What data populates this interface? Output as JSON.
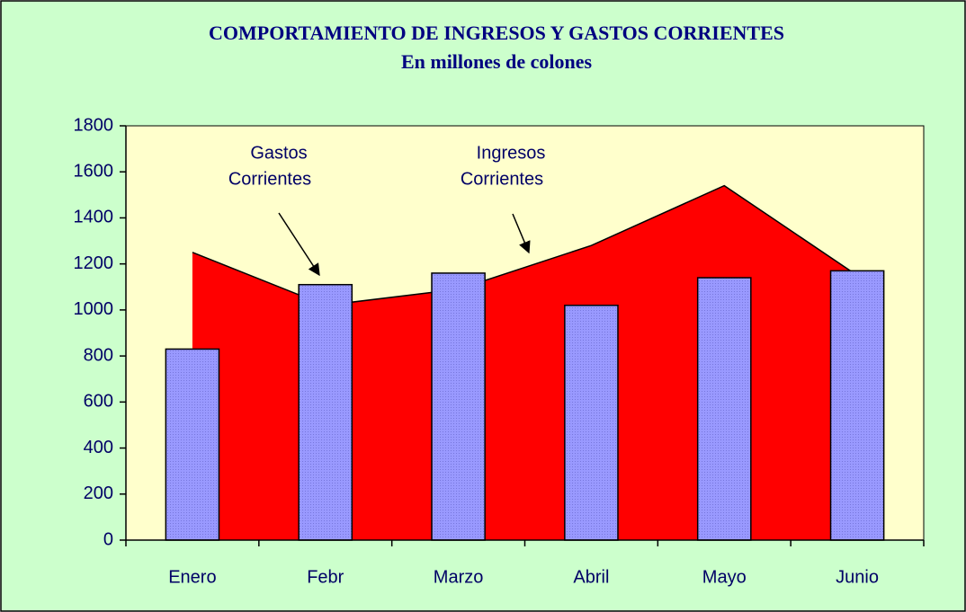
{
  "chart_data": {
    "type": "bar_area",
    "title": "COMPORTAMIENTO DE INGRESOS Y GASTOS CORRIENTES",
    "subtitle": "En millones de colones",
    "categories": [
      "Enero",
      "Febr",
      "Marzo",
      "Abril",
      "Mayo",
      "Junio"
    ],
    "series": [
      {
        "type": "area",
        "color": "#ff0000",
        "values": [
          1250,
          1020,
          1090,
          1280,
          1540,
          1150
        ]
      },
      {
        "type": "bar",
        "color": "#9999ff",
        "values": [
          830,
          1110,
          1160,
          1020,
          1140,
          1170
        ]
      }
    ],
    "annotations": [
      {
        "lines": [
          "Gastos",
          "Corrientes"
        ]
      },
      {
        "lines": [
          "Ingresos",
          "Corrientes"
        ]
      }
    ],
    "ylim": [
      0,
      1800
    ],
    "yticks": [
      0,
      200,
      400,
      600,
      800,
      1000,
      1200,
      1400,
      1600,
      1800
    ],
    "grid": false
  }
}
